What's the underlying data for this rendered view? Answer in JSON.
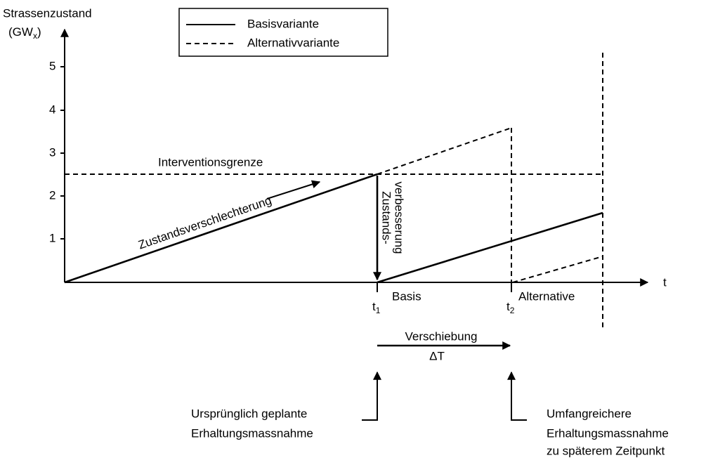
{
  "y_axis": {
    "title": "Strassenzustand",
    "unit_parts": [
      "(GW",
      "x",
      ")"
    ],
    "ticks": [
      "1",
      "2",
      "3",
      "4",
      "5"
    ]
  },
  "x_axis": {
    "title": "t"
  },
  "legend": [
    {
      "label": "Basisvariante",
      "style": "solid"
    },
    {
      "label": "Alternativvariante",
      "style": "dashed"
    }
  ],
  "annotations": {
    "limit": "Interventionsgrenze",
    "deterioration": "Zustandsverschlechterung",
    "improvement": [
      "Zustands-",
      "verbesserung"
    ],
    "t1": {
      "symbol": "t",
      "subscript": "1",
      "label": "Basis"
    },
    "t2": {
      "symbol": "t",
      "subscript": "2",
      "label": "Alternative"
    },
    "shift": [
      "Verschiebung",
      "ΔT"
    ],
    "left_note": [
      "Ursprünglich geplante",
      "Erhaltungsmassnahme"
    ],
    "right_note": [
      "Umfangreichere",
      "Erhaltungsmassnahme",
      "zu späterem Zeitpunkt"
    ]
  }
}
